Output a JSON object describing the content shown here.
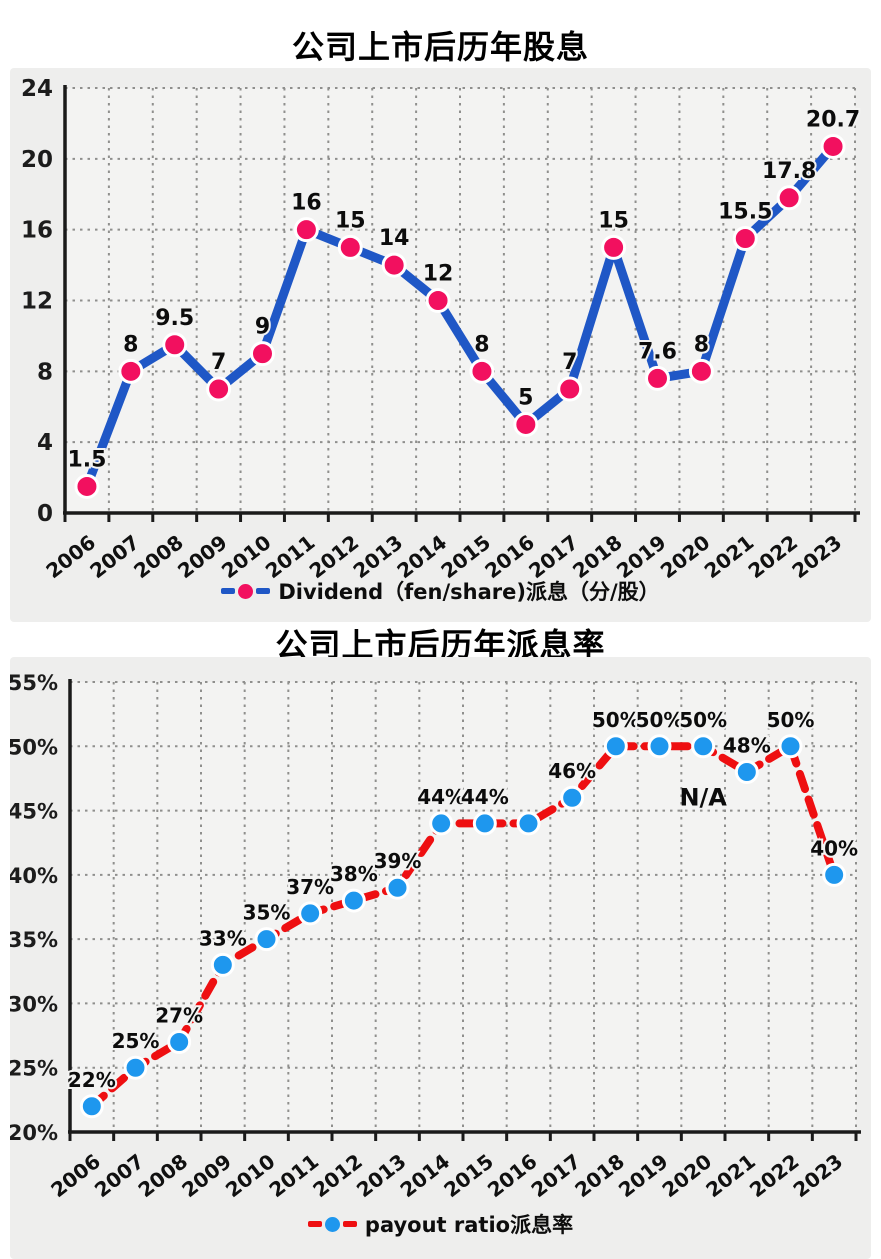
{
  "titles": {
    "chart1": "公司上市后历年股息",
    "chart2": "公司上市后历年派息率"
  },
  "charts": [
    {
      "title": "公司上市后历年股息",
      "legend": {
        "label": "Dividend（fen/share)派息（分/股）",
        "line_color": "#1f57c6",
        "marker_color": "#f2105f"
      }
    },
    {
      "title": "公司上市后历年派息率",
      "legend": {
        "label": "payout ratio派息率",
        "line_color": "#ee0f11",
        "marker_color": "#1e97ee"
      }
    }
  ],
  "chart_data": [
    {
      "type": "line",
      "title": "公司上市后历年股息",
      "categories": [
        "2006",
        "2007",
        "2008",
        "2009",
        "2010",
        "2011",
        "2012",
        "2013",
        "2014",
        "2015",
        "2016",
        "2017",
        "2018",
        "2019",
        "2020",
        "2021",
        "2022",
        "2023"
      ],
      "series": [
        {
          "name": "Dividend（fen/share)派息（分/股）",
          "values": [
            1.5,
            8,
            9.5,
            7,
            9,
            16,
            15,
            14,
            12,
            8,
            5,
            7,
            15,
            7.6,
            8,
            15.5,
            17.8,
            20.7
          ],
          "point_labels": [
            "1.5",
            "8",
            "9.5",
            "7",
            "9",
            "16",
            "15",
            "14",
            "12",
            "8",
            "5",
            "7",
            "15",
            "7.6",
            "8",
            "15.5",
            "17.8",
            "20.7"
          ],
          "line_color": "#1f57c6",
          "line_style": "solid",
          "marker_color": "#f2105f"
        }
      ],
      "ylim": [
        0,
        24
      ],
      "yticks": [
        0,
        4,
        8,
        12,
        16,
        20,
        24
      ],
      "yticklabels": [
        "0",
        "4",
        "8",
        "12",
        "16",
        "20",
        "24"
      ],
      "grid": true,
      "legend_position": "bottom",
      "annotations": []
    },
    {
      "type": "line",
      "title": "公司上市后历年派息率",
      "categories": [
        "2006",
        "2007",
        "2008",
        "2009",
        "2010",
        "2011",
        "2012",
        "2013",
        "2014",
        "2015",
        "2016",
        "2017",
        "2018",
        "2019",
        "2020",
        "2021",
        "2022",
        "2023"
      ],
      "series": [
        {
          "name": "payout ratio派息率",
          "values": [
            22,
            25,
            27,
            33,
            35,
            37,
            38,
            39,
            44,
            44,
            44,
            46,
            50,
            50,
            50,
            48,
            50,
            40
          ],
          "point_labels": [
            "22%",
            "25%",
            "27%",
            "33%",
            "35%",
            "37%",
            "38%",
            "39%",
            "44%",
            "44%",
            "",
            "46%",
            "50%",
            "50%",
            "50%",
            "48%",
            "50%",
            "40%"
          ],
          "line_color": "#ee0f11",
          "line_style": "dashed",
          "marker_color": "#1e97ee"
        }
      ],
      "ylim": [
        20,
        55
      ],
      "yticks": [
        20,
        25,
        30,
        35,
        40,
        45,
        50,
        55
      ],
      "yticklabels": [
        "20%",
        "25%",
        "30%",
        "35%",
        "40%",
        "45%",
        "50%",
        "55%"
      ],
      "grid": true,
      "legend_position": "bottom",
      "annotations": [
        {
          "text": "N/A",
          "category": "2020",
          "value": 45.4
        }
      ]
    }
  ]
}
